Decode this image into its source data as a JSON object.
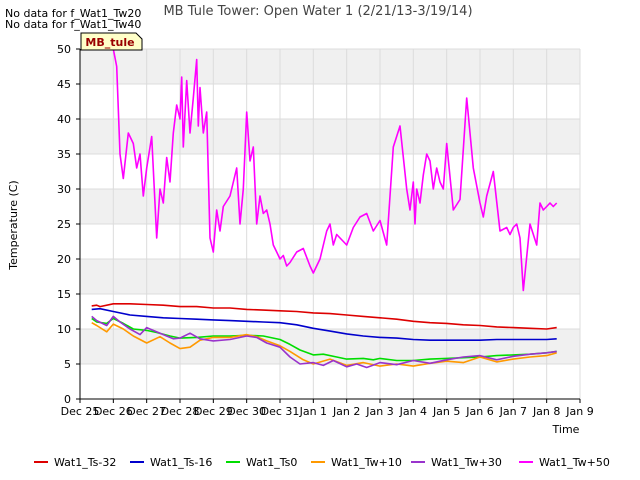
{
  "notes": [
    "No data for f_Wat1_Tw20",
    "No data for f_Wat1_Tw40"
  ],
  "chart_data": {
    "type": "line",
    "title": "MB Tule Tower: Open Water 1 (2/21/13-3/19/14)",
    "xlabel": "Time",
    "ylabel": "Temperature (C)",
    "ylim": [
      0,
      50
    ],
    "yticks": [
      0,
      5,
      10,
      15,
      20,
      25,
      30,
      35,
      40,
      45,
      50
    ],
    "xlim": [
      0,
      15
    ],
    "xticks": [
      0,
      1,
      2,
      3,
      4,
      5,
      6,
      7,
      8,
      9,
      10,
      11,
      12,
      13,
      14,
      15
    ],
    "xtick_labels": [
      "Dec 25",
      "Dec 26",
      "Dec 27",
      "Dec 28",
      "Dec 29",
      "Dec 30",
      "Dec 31",
      "Jan 1",
      "Jan 2",
      "Jan 3",
      "Jan 4",
      "Jan 5",
      "Jan 6",
      "Jan 7",
      "Jan 8",
      "Jan 9"
    ],
    "x_units": "days since Dec 25",
    "grid": true,
    "annotation": "MB_tule",
    "series": [
      {
        "name": "Wat1_Ts-32",
        "color": "#dd0000",
        "x": [
          0.35,
          0.5,
          0.6,
          1.0,
          1.5,
          2.0,
          2.5,
          3.0,
          3.5,
          4.0,
          4.5,
          5.0,
          5.5,
          6.0,
          6.5,
          7.0,
          7.5,
          8.0,
          8.5,
          9.0,
          9.5,
          10.0,
          10.5,
          11.0,
          11.5,
          12.0,
          12.5,
          13.0,
          13.5,
          14.0,
          14.3
        ],
        "values": [
          13.3,
          13.4,
          13.2,
          13.6,
          13.6,
          13.5,
          13.4,
          13.2,
          13.2,
          13.0,
          13.0,
          12.8,
          12.7,
          12.6,
          12.5,
          12.3,
          12.2,
          12.0,
          11.8,
          11.6,
          11.4,
          11.1,
          10.9,
          10.8,
          10.6,
          10.5,
          10.3,
          10.2,
          10.1,
          10.0,
          10.2
        ]
      },
      {
        "name": "Wat1_Ts-16",
        "color": "#0000cc",
        "x": [
          0.35,
          0.6,
          1.0,
          1.5,
          2.0,
          2.5,
          3.0,
          3.5,
          4.0,
          4.5,
          5.0,
          5.5,
          6.0,
          6.5,
          7.0,
          7.5,
          8.0,
          8.5,
          9.0,
          9.5,
          10.0,
          10.5,
          11.0,
          11.5,
          12.0,
          12.5,
          13.0,
          13.5,
          14.0,
          14.3
        ],
        "values": [
          12.8,
          12.9,
          12.5,
          12.0,
          11.8,
          11.6,
          11.5,
          11.4,
          11.3,
          11.2,
          11.1,
          11.0,
          10.9,
          10.6,
          10.1,
          9.7,
          9.3,
          9.0,
          8.8,
          8.7,
          8.5,
          8.4,
          8.4,
          8.4,
          8.4,
          8.5,
          8.5,
          8.5,
          8.5,
          8.6
        ]
      },
      {
        "name": "Wat1_Ts0",
        "color": "#00dd00",
        "x": [
          0.35,
          0.5,
          0.8,
          1.0,
          1.3,
          1.6,
          2.0,
          2.3,
          2.7,
          3.0,
          3.5,
          4.0,
          4.5,
          5.0,
          5.5,
          6.0,
          6.3,
          6.6,
          7.0,
          7.3,
          7.7,
          8.0,
          8.5,
          8.8,
          9.0,
          9.5,
          10.0,
          10.5,
          11.0,
          11.5,
          12.0,
          12.5,
          13.0,
          13.5,
          14.0,
          14.3
        ],
        "values": [
          11.5,
          11.0,
          10.8,
          11.5,
          10.8,
          10.0,
          9.8,
          9.5,
          9.0,
          8.7,
          8.8,
          9.0,
          9.0,
          9.1,
          9.0,
          8.5,
          7.8,
          7.0,
          6.3,
          6.4,
          6.0,
          5.7,
          5.8,
          5.6,
          5.8,
          5.5,
          5.5,
          5.7,
          5.8,
          5.9,
          6.0,
          6.2,
          6.3,
          6.4,
          6.6,
          6.8
        ]
      },
      {
        "name": "Wat1_Tw+10",
        "color": "#ff9900",
        "x": [
          0.35,
          0.5,
          0.8,
          1.0,
          1.3,
          1.6,
          2.0,
          2.4,
          2.7,
          3.0,
          3.3,
          3.6,
          4.0,
          4.5,
          5.0,
          5.3,
          5.6,
          6.0,
          6.3,
          6.7,
          7.0,
          7.5,
          8.0,
          8.5,
          9.0,
          9.5,
          10.0,
          10.5,
          11.0,
          11.5,
          12.0,
          12.5,
          13.0,
          13.5,
          14.0,
          14.3
        ],
        "values": [
          10.9,
          10.5,
          9.6,
          10.7,
          10.0,
          9.0,
          8.0,
          8.9,
          8.0,
          7.2,
          7.4,
          8.4,
          8.8,
          8.8,
          9.2,
          8.9,
          8.3,
          7.6,
          6.8,
          5.6,
          5.0,
          5.7,
          4.8,
          5.2,
          4.7,
          5.0,
          4.7,
          5.1,
          5.4,
          5.2,
          6.0,
          5.3,
          5.7,
          6.0,
          6.2,
          6.6
        ]
      },
      {
        "name": "Wat1_Tw+30",
        "color": "#9933cc",
        "x": [
          0.35,
          0.5,
          0.8,
          1.0,
          1.2,
          1.5,
          1.8,
          2.0,
          2.5,
          2.8,
          3.0,
          3.3,
          3.6,
          4.0,
          4.5,
          5.0,
          5.3,
          5.6,
          6.0,
          6.3,
          6.6,
          7.0,
          7.3,
          7.6,
          8.0,
          8.3,
          8.6,
          9.0,
          9.5,
          10.0,
          10.5,
          11.0,
          11.5,
          12.0,
          12.5,
          13.0,
          13.5,
          14.0,
          14.3
        ],
        "values": [
          11.8,
          11.2,
          10.5,
          11.8,
          11.0,
          10.0,
          9.2,
          10.2,
          9.2,
          8.6,
          8.7,
          9.4,
          8.6,
          8.3,
          8.5,
          9.0,
          8.8,
          8.0,
          7.4,
          6.0,
          5.0,
          5.2,
          4.8,
          5.5,
          4.6,
          5.0,
          4.5,
          5.2,
          4.9,
          5.5,
          5.1,
          5.6,
          6.0,
          6.2,
          5.6,
          6.1,
          6.4,
          6.6,
          6.8
        ]
      },
      {
        "name": "Wat1_Tw+50",
        "color": "#ff00ff",
        "x": [
          1.0,
          1.1,
          1.2,
          1.3,
          1.45,
          1.6,
          1.7,
          1.8,
          1.9,
          2.0,
          2.15,
          2.3,
          2.4,
          2.5,
          2.6,
          2.7,
          2.8,
          2.9,
          3.0,
          3.05,
          3.1,
          3.2,
          3.3,
          3.4,
          3.5,
          3.55,
          3.6,
          3.7,
          3.8,
          3.9,
          4.0,
          4.1,
          4.2,
          4.3,
          4.5,
          4.7,
          4.8,
          4.9,
          5.0,
          5.1,
          5.2,
          5.3,
          5.4,
          5.5,
          5.6,
          5.7,
          5.8,
          5.9,
          6.0,
          6.1,
          6.2,
          6.3,
          6.5,
          6.7,
          6.9,
          7.0,
          7.2,
          7.4,
          7.5,
          7.6,
          7.7,
          8.0,
          8.2,
          8.4,
          8.6,
          8.8,
          9.0,
          9.2,
          9.4,
          9.6,
          9.8,
          9.9,
          10.0,
          10.05,
          10.1,
          10.2,
          10.3,
          10.4,
          10.5,
          10.6,
          10.7,
          10.8,
          10.9,
          11.0,
          11.2,
          11.4,
          11.6,
          11.8,
          12.0,
          12.1,
          12.2,
          12.4,
          12.6,
          12.8,
          12.9,
          13.0,
          13.1,
          13.2,
          13.3,
          13.5,
          13.7,
          13.8,
          13.9,
          14.0,
          14.1,
          14.2,
          14.3
        ],
        "values": [
          50.0,
          47.5,
          35.0,
          31.5,
          38.0,
          36.5,
          33.0,
          35.0,
          29.0,
          33.0,
          37.5,
          23.0,
          30.0,
          28.0,
          34.5,
          31.0,
          38.0,
          42.0,
          40.0,
          46.0,
          36.0,
          45.5,
          38.0,
          43.0,
          48.5,
          39.0,
          44.5,
          38.0,
          41.0,
          23.0,
          21.0,
          27.0,
          24.0,
          27.5,
          29.0,
          33.0,
          25.0,
          30.0,
          41.0,
          34.0,
          36.0,
          25.0,
          29.0,
          26.5,
          27.0,
          25.0,
          22.0,
          21.0,
          20.0,
          20.5,
          19.0,
          19.5,
          21.0,
          21.5,
          19.0,
          18.0,
          20.0,
          24.0,
          25.0,
          22.0,
          23.5,
          22.0,
          24.5,
          26.0,
          26.5,
          24.0,
          25.5,
          22.0,
          36.0,
          39.0,
          30.0,
          27.0,
          31.0,
          25.0,
          30.0,
          28.0,
          32.0,
          35.0,
          34.0,
          30.0,
          33.0,
          31.0,
          30.0,
          36.5,
          27.0,
          28.5,
          43.0,
          33.0,
          28.0,
          26.0,
          29.0,
          32.5,
          24.0,
          24.5,
          23.5,
          24.5,
          25.0,
          23.0,
          15.5,
          25.0,
          22.0,
          28.0,
          27.0,
          27.5,
          28.0,
          27.5,
          28.0
        ]
      }
    ]
  }
}
